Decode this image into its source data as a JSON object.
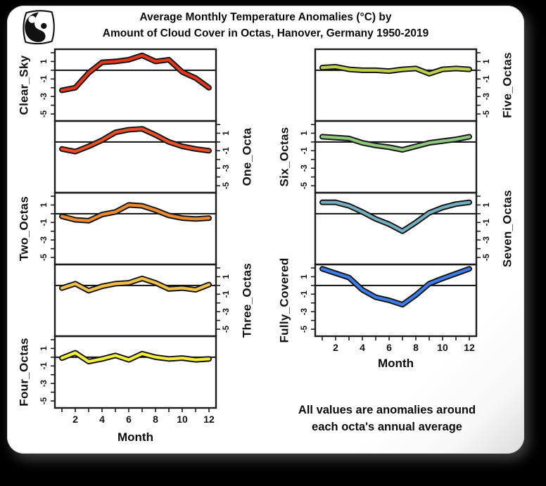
{
  "frame": {
    "background": "#000000",
    "card_background": "#ffffff"
  },
  "logo": {
    "icon": "yin-yang-logo"
  },
  "title": {
    "line1": "Average Monthly Temperature Anomalies (°C) by",
    "line2": "Amount of Cloud Cover in Octas, Hanover, Germany 1950-2019"
  },
  "note": {
    "line1": "All values are anomalies around",
    "line2": "each octa's annual average"
  },
  "chart_data": {
    "type": "line",
    "title": "Average Monthly Temperature Anomalies (°C) by Amount of Cloud Cover in Octas, Hanover, Germany 1950-2019",
    "xlabel": "Month",
    "x": [
      1,
      2,
      3,
      4,
      5,
      6,
      7,
      8,
      9,
      10,
      11,
      12
    ],
    "xtick_months": [
      2,
      4,
      6,
      8,
      10,
      12
    ],
    "xtick_labels": [
      "2",
      "4",
      "6",
      "8",
      "10",
      "12"
    ],
    "ylim": [
      -5.8,
      2.4
    ],
    "ytick_values": [
      2,
      1,
      0,
      -1,
      -2,
      -3,
      -4,
      -5
    ],
    "ytick_labeled": [
      1,
      -1,
      -3,
      -5
    ],
    "reference_line_y": 0,
    "grid": false,
    "legend": "none",
    "line_outline_color": "#111111",
    "panels": [
      {
        "name": "Clear_Sky",
        "column": "left",
        "row": 0,
        "label_side": "left",
        "color": "#e2371b",
        "values": [
          -2.3,
          -2.0,
          -0.3,
          0.9,
          1.0,
          1.2,
          1.7,
          1.0,
          1.2,
          -0.2,
          -0.9,
          -2.0
        ]
      },
      {
        "name": "One_Octa",
        "column": "left",
        "row": 1,
        "label_side": "right",
        "color": "#e84e26",
        "values": [
          -0.8,
          -1.1,
          -0.5,
          0.2,
          1.1,
          1.4,
          1.5,
          0.8,
          0.0,
          -0.5,
          -0.8,
          -1.0
        ]
      },
      {
        "name": "Two_Octas",
        "column": "left",
        "row": 2,
        "label_side": "left",
        "color": "#ec8a2f",
        "values": [
          -0.3,
          -0.7,
          -0.8,
          -0.1,
          0.2,
          1.0,
          0.9,
          0.4,
          -0.2,
          -0.5,
          -0.6,
          -0.5
        ]
      },
      {
        "name": "Three_Octas",
        "column": "left",
        "row": 3,
        "label_side": "right",
        "color": "#f0c04a",
        "values": [
          -0.3,
          0.2,
          -0.6,
          -0.1,
          0.2,
          0.3,
          0.8,
          0.3,
          -0.4,
          -0.3,
          -0.5,
          0.1
        ]
      },
      {
        "name": "Four_Octas",
        "column": "left",
        "row": 4,
        "label_side": "left",
        "color": "#f2ee3a",
        "values": [
          -0.1,
          0.5,
          -0.5,
          -0.2,
          0.2,
          -0.3,
          0.4,
          0.0,
          -0.2,
          -0.1,
          -0.3,
          -0.2
        ]
      },
      {
        "name": "Five_Octas",
        "column": "right",
        "row": 0,
        "label_side": "right",
        "color": "#bed04b",
        "values": [
          0.3,
          0.4,
          0.1,
          0.0,
          0.0,
          -0.1,
          0.1,
          0.2,
          -0.4,
          0.1,
          0.2,
          0.1
        ]
      },
      {
        "name": "Six_Octas",
        "column": "right",
        "row": 1,
        "label_side": "left",
        "color": "#8fc67d",
        "values": [
          0.6,
          0.5,
          0.4,
          -0.1,
          -0.4,
          -0.6,
          -0.9,
          -0.5,
          -0.1,
          0.1,
          0.3,
          0.6
        ]
      },
      {
        "name": "Seven_Octas",
        "column": "right",
        "row": 2,
        "label_side": "right",
        "color": "#72aebe",
        "values": [
          1.3,
          1.3,
          0.9,
          0.2,
          -0.6,
          -1.2,
          -2.0,
          -1.0,
          0.1,
          0.7,
          1.1,
          1.3
        ]
      },
      {
        "name": "Fully_Covered",
        "column": "right",
        "row": 3,
        "label_side": "left",
        "color": "#3b7bea",
        "values": [
          1.9,
          1.4,
          0.9,
          -0.5,
          -1.35,
          -1.7,
          -2.2,
          -1.1,
          0.2,
          0.8,
          1.35,
          1.9
        ]
      }
    ]
  }
}
